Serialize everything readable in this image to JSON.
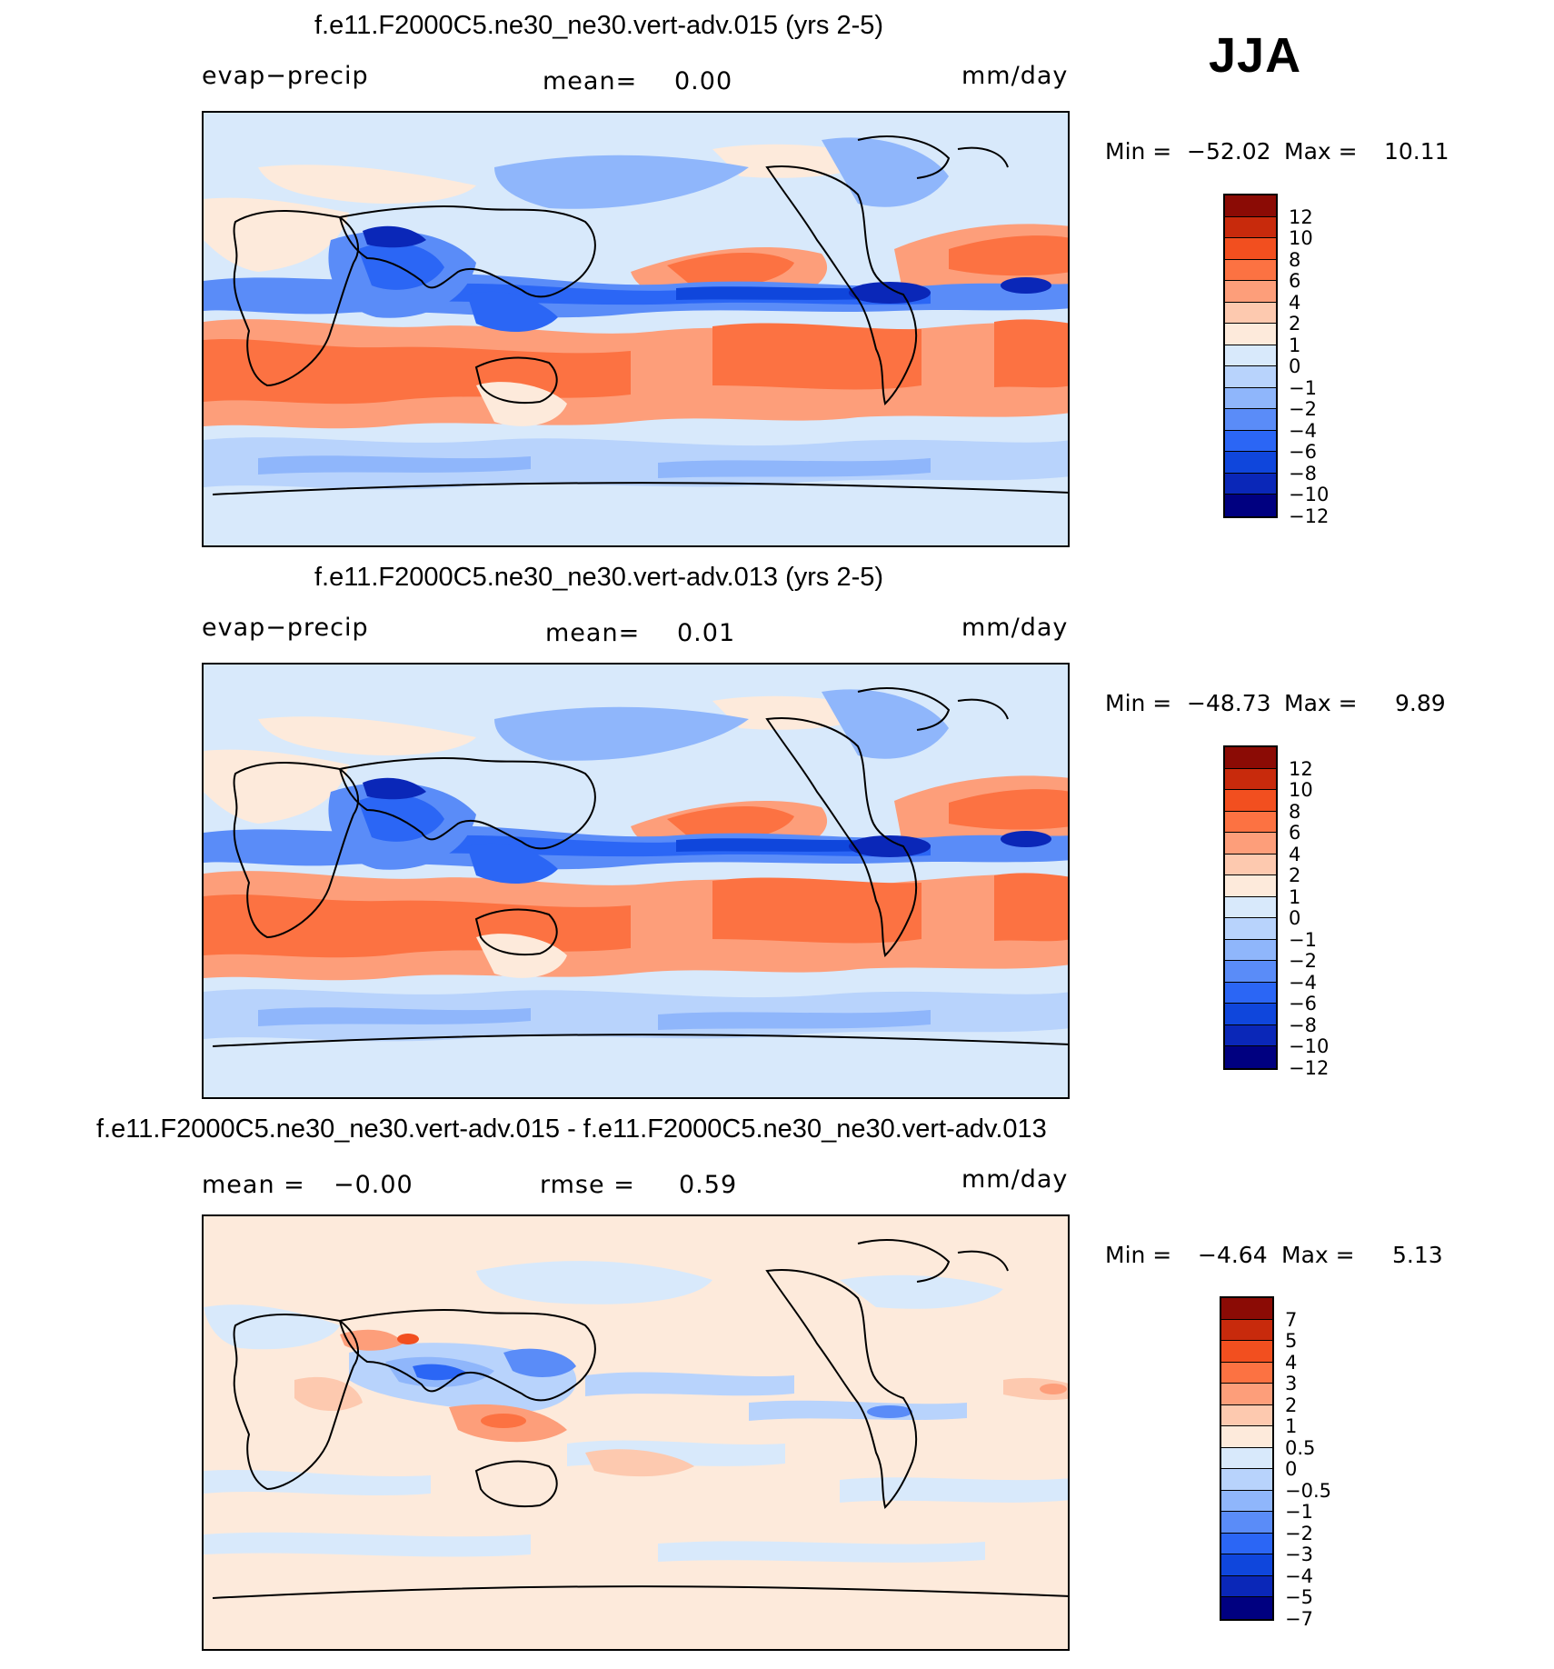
{
  "season": "JJA",
  "palette": {
    "standard": [
      "#000080",
      "#0a27b8",
      "#0f46dc",
      "#2b66f5",
      "#5a8cf8",
      "#8fb6fb",
      "#b8d3fc",
      "#d8e9fb",
      "#fdeadb",
      "#fdc9af",
      "#fd9e7a",
      "#fc7242",
      "#f24f1f",
      "#c82a0c",
      "#8b0b05"
    ],
    "difference": [
      "#000080",
      "#0a27b8",
      "#0f46dc",
      "#2b66f5",
      "#5a8cf8",
      "#8fb6fb",
      "#b8d3fc",
      "#d8e9fb",
      "#fdeadb",
      "#fdc9af",
      "#fd9e7a",
      "#fc7242",
      "#f24f1f",
      "#c82a0c",
      "#8b0b05"
    ]
  },
  "panels": [
    {
      "title": "f.e11.F2000C5.ne30_ne30.vert-adv.015 (yrs 2-5)",
      "left_label": "evap−precip",
      "mid_label": "mean=",
      "mid_value": "0.00",
      "right_label": "mm/day",
      "min_label": "Min  =",
      "min_value": "−52.02",
      "max_label": "Max  =",
      "max_value": "10.11",
      "levels": [
        "12",
        "10",
        "8",
        "6",
        "4",
        "2",
        "1",
        "0",
        "−1",
        "−2",
        "−4",
        "−6",
        "−8",
        "−10",
        "−12"
      ],
      "palette_key": "standard"
    },
    {
      "title": "f.e11.F2000C5.ne30_ne30.vert-adv.013 (yrs 2-5)",
      "left_label": "evap−precip",
      "mid_label": "mean=",
      "mid_value": "0.01",
      "right_label": "mm/day",
      "min_label": "Min  =",
      "min_value": "−48.73",
      "max_label": "Max  =",
      "max_value": "9.89",
      "levels": [
        "12",
        "10",
        "8",
        "6",
        "4",
        "2",
        "1",
        "0",
        "−1",
        "−2",
        "−4",
        "−6",
        "−8",
        "−10",
        "−12"
      ],
      "palette_key": "standard"
    },
    {
      "title": "f.e11.F2000C5.ne30_ne30.vert-adv.015 - f.e11.F2000C5.ne30_ne30.vert-adv.013",
      "left_label": "mean  =",
      "left_value": "−0.00",
      "mid_label": "rmse  =",
      "mid_value": "0.59",
      "right_label": "mm/day",
      "min_label": "Min  =",
      "min_value": "−4.64",
      "max_label": "Max  =",
      "max_value": "5.13",
      "levels": [
        "7",
        "5",
        "4",
        "3",
        "2",
        "1",
        "0.5",
        "0",
        "−0.5",
        "−1",
        "−2",
        "−3",
        "−4",
        "−5",
        "−7"
      ],
      "palette_key": "difference"
    }
  ]
}
